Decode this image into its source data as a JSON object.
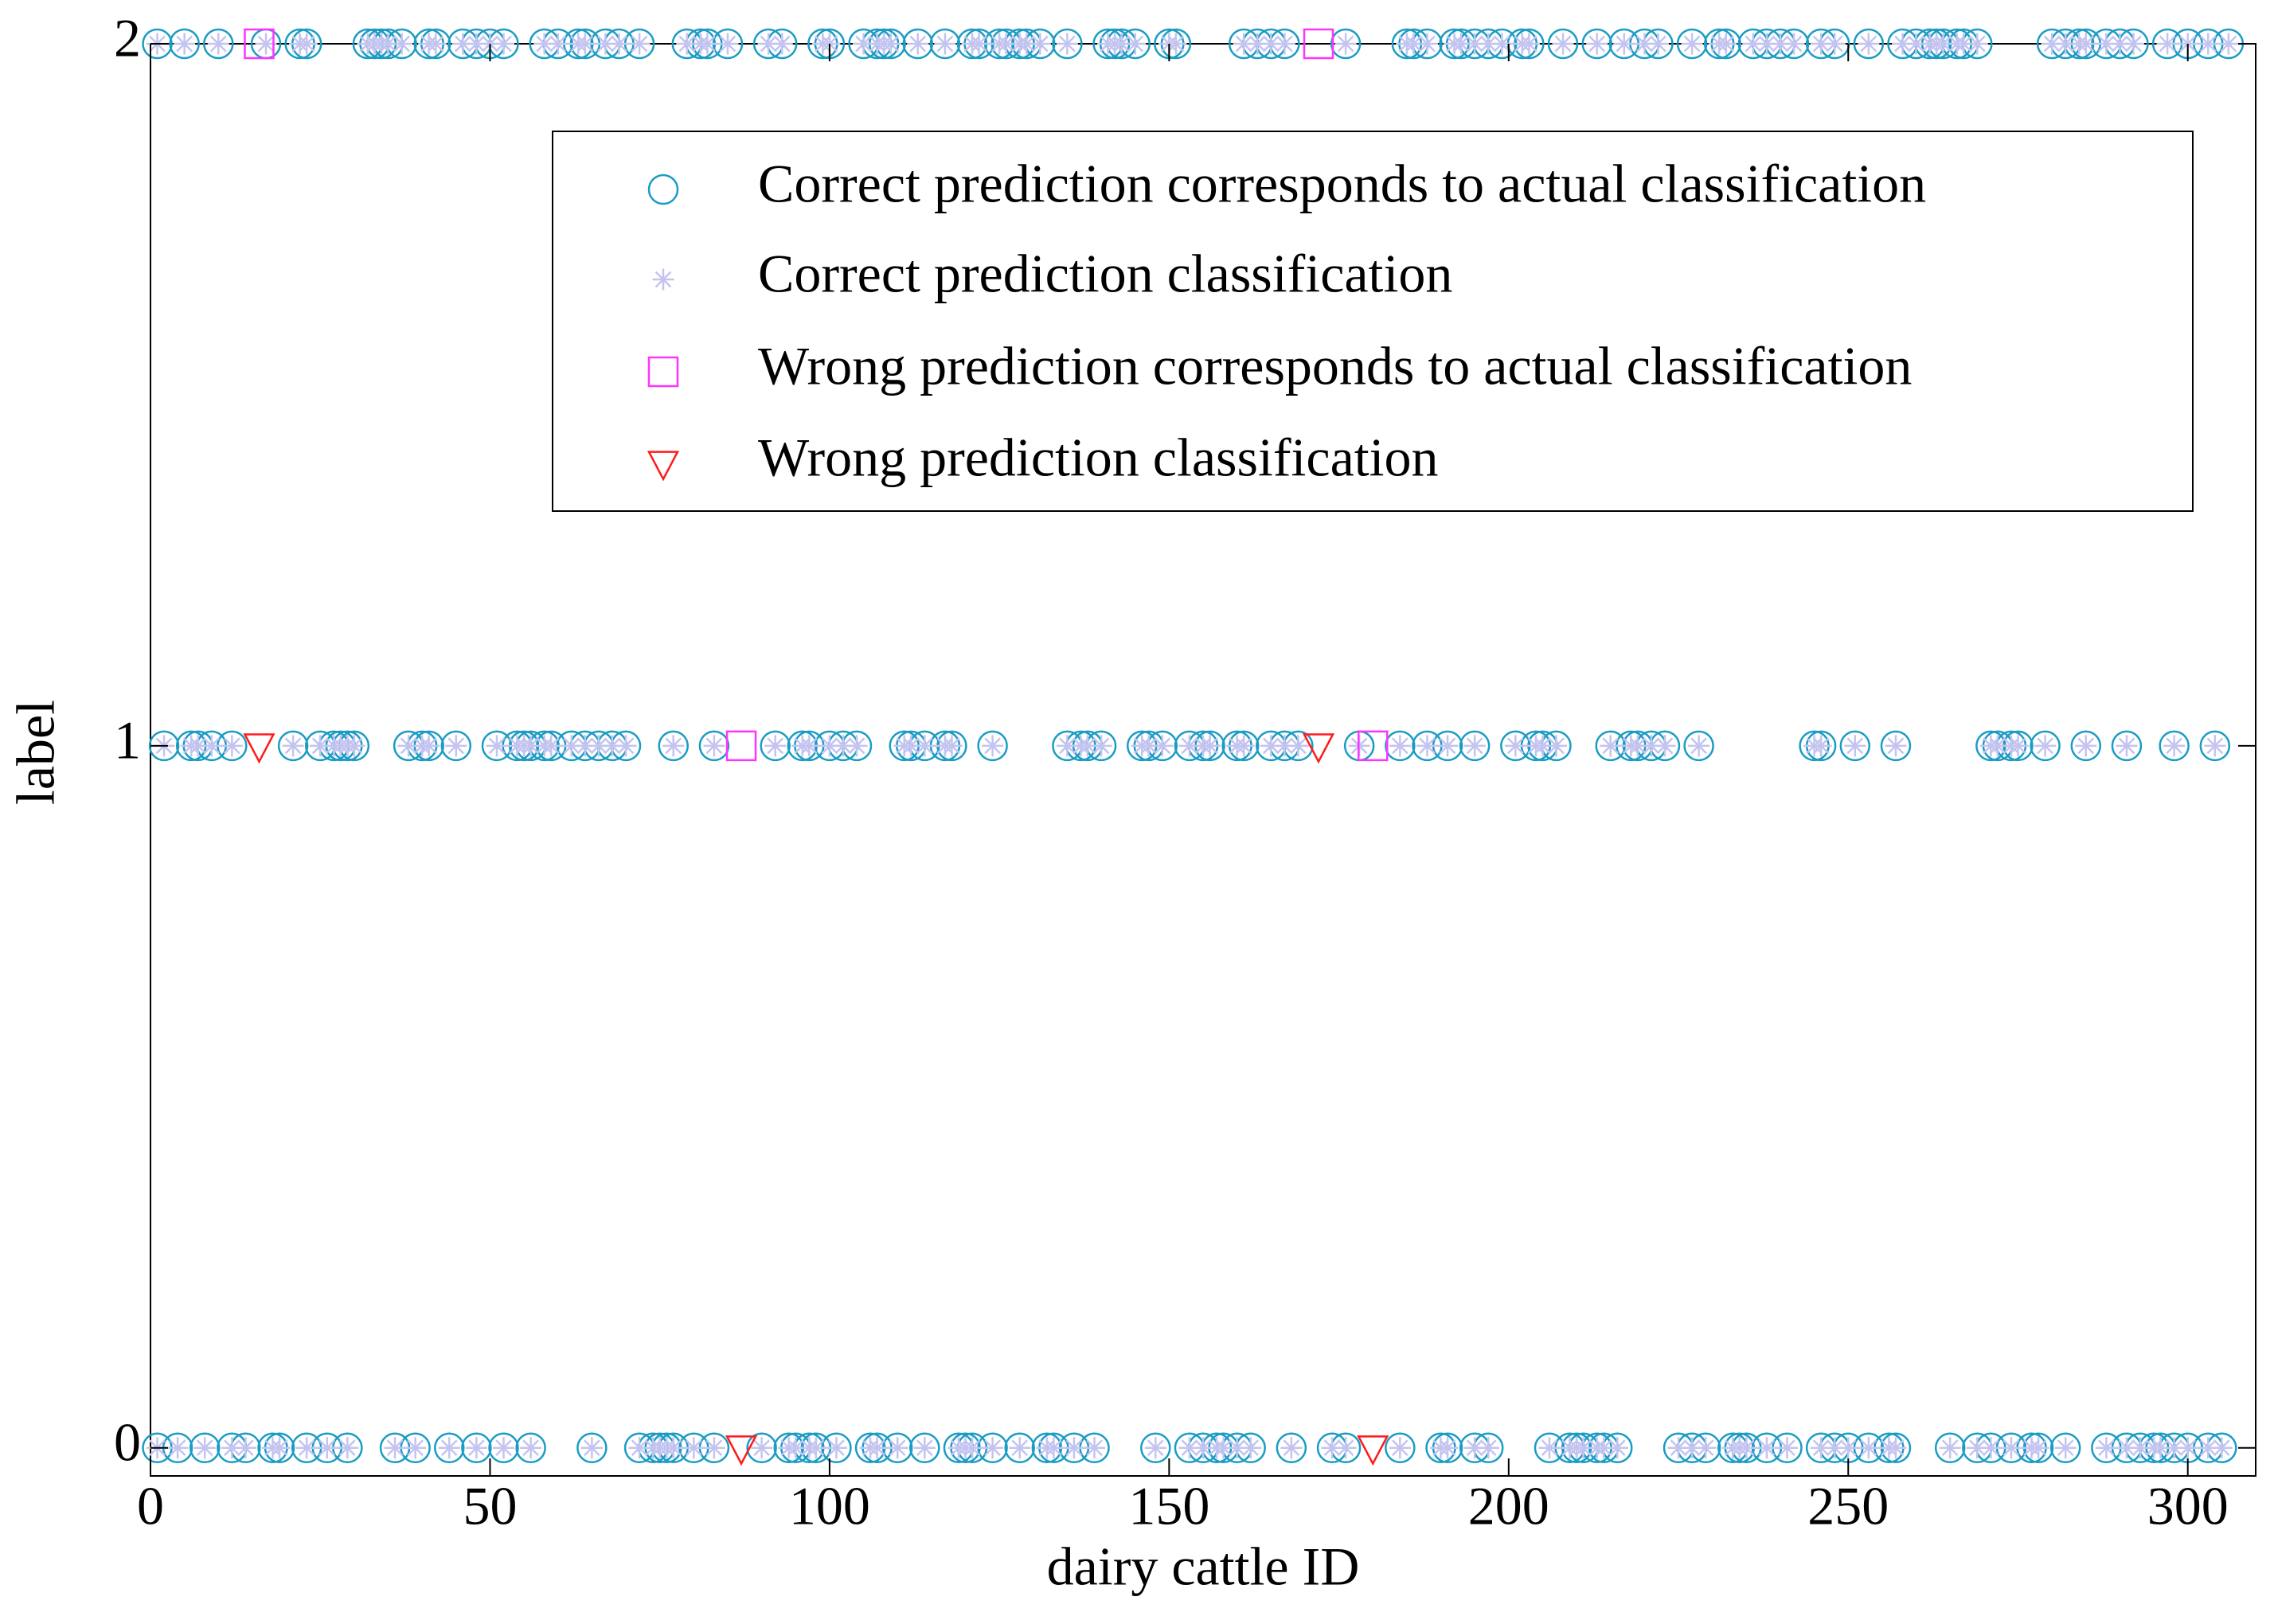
{
  "chart_data": {
    "type": "scatter",
    "xlabel": "dairy cattle ID",
    "ylabel": "label",
    "xlim": [
      0,
      310
    ],
    "ylim": [
      -0.04,
      2
    ],
    "xticks": [
      0,
      50,
      100,
      150,
      200,
      250,
      300
    ],
    "yticks": [
      0,
      1,
      2
    ],
    "grid": false,
    "legend": "upper right",
    "series": [
      {
        "name": "Correct prediction corresponds to actual classification",
        "color": "#1a9cc4",
        "marker": "circle",
        "x": [
          1,
          5,
          10,
          17,
          22,
          23,
          32,
          33,
          34,
          35,
          37,
          41,
          42,
          46,
          48,
          50,
          52,
          58,
          60,
          63,
          64,
          67,
          69,
          72,
          79,
          81,
          82,
          85,
          91,
          93,
          99,
          100,
          105,
          107,
          108,
          109,
          113,
          117,
          121,
          122,
          125,
          126,
          128,
          129,
          131,
          135,
          141,
          142,
          143,
          145,
          150,
          151,
          161,
          163,
          165,
          167,
          176,
          185,
          186,
          188,
          192,
          193,
          195,
          197,
          199,
          202,
          203,
          208,
          213,
          217,
          220,
          222,
          227,
          231,
          232,
          236,
          238,
          240,
          242,
          246,
          248,
          253,
          258,
          260,
          262,
          263,
          264,
          266,
          267,
          269,
          280,
          282,
          284,
          285,
          288,
          290,
          292,
          297,
          300,
          303,
          306,
          2,
          6,
          7,
          9,
          12,
          21,
          25,
          27,
          28,
          29,
          30,
          38,
          40,
          41,
          45,
          51,
          54,
          55,
          56,
          58,
          59,
          62,
          64,
          66,
          68,
          70,
          77,
          83,
          92,
          96,
          97,
          100,
          102,
          104,
          111,
          112,
          114,
          117,
          118,
          124,
          135,
          137,
          138,
          140,
          146,
          147,
          149,
          153,
          155,
          156,
          160,
          161,
          165,
          167,
          169,
          178,
          184,
          188,
          191,
          195,
          201,
          204,
          205,
          207,
          215,
          218,
          219,
          221,
          223,
          228,
          245,
          246,
          251,
          257,
          271,
          272,
          274,
          275,
          279,
          285,
          291,
          298,
          304,
          1,
          4,
          8,
          12,
          14,
          18,
          19,
          23,
          26,
          29,
          36,
          39,
          44,
          48,
          52,
          56,
          65,
          72,
          74,
          75,
          76,
          77,
          80,
          83,
          90,
          94,
          95,
          97,
          98,
          101,
          106,
          107,
          110,
          114,
          119,
          120,
          121,
          124,
          128,
          132,
          133,
          136,
          139,
          148,
          153,
          155,
          157,
          158,
          160,
          162,
          168,
          174,
          176,
          184,
          190,
          191,
          195,
          197,
          206,
          209,
          210,
          211,
          213,
          214,
          216,
          225,
          227,
          229,
          233,
          234,
          235,
          238,
          241,
          246,
          248,
          250,
          253,
          256,
          257,
          265,
          269,
          271,
          274,
          277,
          278,
          282,
          288,
          291,
          293,
          295,
          296,
          298,
          300,
          303,
          305
        ],
        "values": [
          2,
          2,
          2,
          2,
          2,
          2,
          2,
          2,
          2,
          2,
          2,
          2,
          2,
          2,
          2,
          2,
          2,
          2,
          2,
          2,
          2,
          2,
          2,
          2,
          2,
          2,
          2,
          2,
          2,
          2,
          2,
          2,
          2,
          2,
          2,
          2,
          2,
          2,
          2,
          2,
          2,
          2,
          2,
          2,
          2,
          2,
          2,
          2,
          2,
          2,
          2,
          2,
          2,
          2,
          2,
          2,
          2,
          2,
          2,
          2,
          2,
          2,
          2,
          2,
          2,
          2,
          2,
          2,
          2,
          2,
          2,
          2,
          2,
          2,
          2,
          2,
          2,
          2,
          2,
          2,
          2,
          2,
          2,
          2,
          2,
          2,
          2,
          2,
          2,
          2,
          2,
          2,
          2,
          2,
          2,
          2,
          2,
          2,
          2,
          2,
          2,
          1,
          1,
          1,
          1,
          1,
          1,
          1,
          1,
          1,
          1,
          1,
          1,
          1,
          1,
          1,
          1,
          1,
          1,
          1,
          1,
          1,
          1,
          1,
          1,
          1,
          1,
          1,
          1,
          1,
          1,
          1,
          1,
          1,
          1,
          1,
          1,
          1,
          1,
          1,
          1,
          1,
          1,
          1,
          1,
          1,
          1,
          1,
          1,
          1,
          1,
          1,
          1,
          1,
          1,
          1,
          1,
          1,
          1,
          1,
          1,
          1,
          1,
          1,
          1,
          1,
          1,
          1,
          1,
          1,
          1,
          1,
          1,
          1,
          1,
          1,
          1,
          1,
          1,
          1,
          1,
          1,
          1,
          1,
          0,
          0,
          0,
          0,
          0,
          0,
          0,
          0,
          0,
          0,
          0,
          0,
          0,
          0,
          0,
          0,
          0,
          0,
          0,
          0,
          0,
          0,
          0,
          0,
          0,
          0,
          0,
          0,
          0,
          0,
          0,
          0,
          0,
          0,
          0,
          0,
          0,
          0,
          0,
          0,
          0,
          0,
          0,
          0,
          0,
          0,
          0,
          0,
          0,
          0,
          0,
          0,
          0,
          0,
          0,
          0,
          0,
          0,
          0,
          0,
          0,
          0,
          0,
          0,
          0,
          0,
          0,
          0,
          0,
          0,
          0,
          0,
          0,
          0,
          0,
          0,
          0,
          0,
          0,
          0,
          0,
          0,
          0,
          0,
          0,
          0,
          0,
          0,
          0,
          0,
          0,
          0,
          0,
          0,
          0
        ]
      },
      {
        "name": "Correct prediction classification",
        "color": "#c4c4f0",
        "marker": "asterisk",
        "x": [
          1,
          5,
          10,
          17,
          22,
          23,
          32,
          33,
          34,
          35,
          37,
          41,
          42,
          46,
          48,
          50,
          52,
          58,
          60,
          63,
          64,
          67,
          69,
          72,
          79,
          81,
          82,
          85,
          91,
          93,
          99,
          100,
          105,
          107,
          108,
          109,
          113,
          117,
          121,
          122,
          125,
          126,
          128,
          129,
          131,
          135,
          141,
          142,
          143,
          145,
          150,
          151,
          161,
          163,
          165,
          167,
          176,
          185,
          186,
          188,
          192,
          193,
          195,
          197,
          199,
          202,
          203,
          208,
          213,
          217,
          220,
          222,
          227,
          231,
          232,
          236,
          238,
          240,
          242,
          246,
          248,
          253,
          258,
          260,
          262,
          263,
          264,
          266,
          267,
          269,
          280,
          282,
          284,
          285,
          288,
          290,
          292,
          297,
          300,
          303,
          306,
          2,
          6,
          7,
          9,
          12,
          21,
          25,
          27,
          28,
          29,
          30,
          38,
          40,
          41,
          45,
          51,
          54,
          55,
          56,
          58,
          59,
          62,
          64,
          66,
          68,
          70,
          77,
          83,
          92,
          96,
          97,
          100,
          102,
          104,
          111,
          112,
          114,
          117,
          118,
          124,
          135,
          137,
          138,
          140,
          146,
          147,
          149,
          153,
          155,
          156,
          160,
          161,
          165,
          167,
          169,
          178,
          184,
          188,
          191,
          195,
          201,
          204,
          205,
          207,
          215,
          218,
          219,
          221,
          223,
          228,
          245,
          246,
          251,
          257,
          271,
          272,
          274,
          275,
          279,
          285,
          291,
          298,
          304,
          1,
          4,
          8,
          12,
          14,
          18,
          19,
          23,
          26,
          29,
          36,
          39,
          44,
          48,
          52,
          56,
          65,
          72,
          74,
          75,
          76,
          77,
          80,
          83,
          90,
          94,
          95,
          97,
          98,
          101,
          106,
          107,
          110,
          114,
          119,
          120,
          121,
          124,
          128,
          132,
          133,
          136,
          139,
          148,
          153,
          155,
          157,
          158,
          160,
          162,
          168,
          174,
          176,
          184,
          190,
          191,
          195,
          197,
          206,
          209,
          210,
          211,
          213,
          214,
          216,
          225,
          227,
          229,
          233,
          234,
          235,
          238,
          241,
          246,
          248,
          250,
          253,
          256,
          257,
          265,
          269,
          271,
          274,
          277,
          278,
          282,
          288,
          291,
          293,
          295,
          296,
          298,
          300,
          303,
          305
        ],
        "values": [
          2,
          2,
          2,
          2,
          2,
          2,
          2,
          2,
          2,
          2,
          2,
          2,
          2,
          2,
          2,
          2,
          2,
          2,
          2,
          2,
          2,
          2,
          2,
          2,
          2,
          2,
          2,
          2,
          2,
          2,
          2,
          2,
          2,
          2,
          2,
          2,
          2,
          2,
          2,
          2,
          2,
          2,
          2,
          2,
          2,
          2,
          2,
          2,
          2,
          2,
          2,
          2,
          2,
          2,
          2,
          2,
          2,
          2,
          2,
          2,
          2,
          2,
          2,
          2,
          2,
          2,
          2,
          2,
          2,
          2,
          2,
          2,
          2,
          2,
          2,
          2,
          2,
          2,
          2,
          2,
          2,
          2,
          2,
          2,
          2,
          2,
          2,
          2,
          2,
          2,
          2,
          2,
          2,
          2,
          2,
          2,
          2,
          2,
          2,
          2,
          2,
          1,
          1,
          1,
          1,
          1,
          1,
          1,
          1,
          1,
          1,
          1,
          1,
          1,
          1,
          1,
          1,
          1,
          1,
          1,
          1,
          1,
          1,
          1,
          1,
          1,
          1,
          1,
          1,
          1,
          1,
          1,
          1,
          1,
          1,
          1,
          1,
          1,
          1,
          1,
          1,
          1,
          1,
          1,
          1,
          1,
          1,
          1,
          1,
          1,
          1,
          1,
          1,
          1,
          1,
          1,
          1,
          1,
          1,
          1,
          1,
          1,
          1,
          1,
          1,
          1,
          1,
          1,
          1,
          1,
          1,
          1,
          1,
          1,
          1,
          1,
          1,
          1,
          1,
          1,
          1,
          1,
          1,
          1,
          0,
          0,
          0,
          0,
          0,
          0,
          0,
          0,
          0,
          0,
          0,
          0,
          0,
          0,
          0,
          0,
          0,
          0,
          0,
          0,
          0,
          0,
          0,
          0,
          0,
          0,
          0,
          0,
          0,
          0,
          0,
          0,
          0,
          0,
          0,
          0,
          0,
          0,
          0,
          0,
          0,
          0,
          0,
          0,
          0,
          0,
          0,
          0,
          0,
          0,
          0,
          0,
          0,
          0,
          0,
          0,
          0,
          0,
          0,
          0,
          0,
          0,
          0,
          0,
          0,
          0,
          0,
          0,
          0,
          0,
          0,
          0,
          0,
          0,
          0,
          0,
          0,
          0,
          0,
          0,
          0,
          0,
          0,
          0,
          0,
          0,
          0,
          0,
          0,
          0,
          0,
          0,
          0,
          0,
          0
        ]
      },
      {
        "name": "Wrong prediction corresponds to actual classification",
        "color": "#ff33ff",
        "marker": "square",
        "x": [
          16,
          172,
          87,
          180
        ],
        "values": [
          2,
          2,
          1,
          1
        ]
      },
      {
        "name": "Wrong prediction classification",
        "color": "#ff1a1a",
        "marker": "triangle",
        "x": [
          16,
          172,
          87,
          180
        ],
        "values": [
          1,
          1,
          0,
          0
        ]
      }
    ]
  }
}
